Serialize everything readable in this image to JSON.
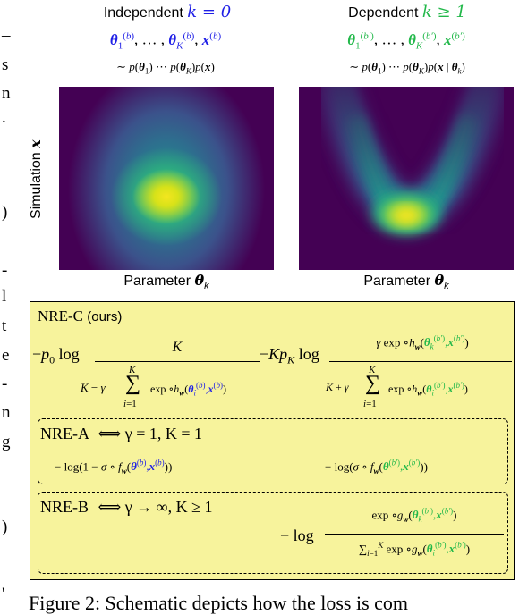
{
  "margin_fragments": [
    "–",
    "s",
    "n",
    ".",
    ")",
    "-",
    "l",
    "t",
    "e",
    "-",
    "n",
    "g",
    ")",
    "'"
  ],
  "left_panel": {
    "title": "Independent",
    "k_expr": "k = 0",
    "ylabel_text": "Simulation",
    "ylabel_symbol": "x",
    "xlabel_text": "Parameter"
  },
  "right_panel": {
    "title": "Dependent",
    "k_expr": "k ≥ 1",
    "xlabel_text": "Parameter"
  },
  "nre_c": {
    "label": "NRE-C",
    "note": "(ours)"
  },
  "nre_a": {
    "label": "NRE-A",
    "condition": "⟺ γ = 1, K = 1"
  },
  "nre_b": {
    "label": "NRE-B",
    "condition": "⟺ γ → ∞, K ≥ 1"
  },
  "caption_fragment": "Figure 2: Schematic depicts how the loss is com"
}
